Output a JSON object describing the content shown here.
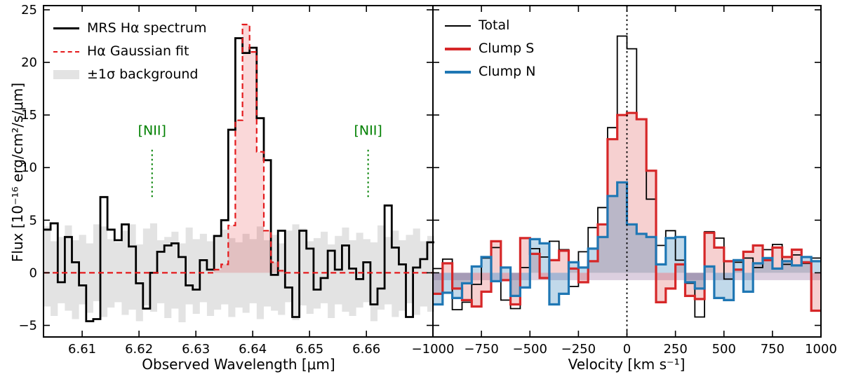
{
  "figure": {
    "background": "#ffffff",
    "axis_color": "#000000"
  },
  "chart_data": [
    {
      "type": "bar",
      "subtype": "step-histogram-spectrum",
      "panel": "left",
      "xlabel": "Observed Wavelength [μm]",
      "ylabel": "Flux [10⁻¹⁶ erg/cm²/s/μm]",
      "xlim": [
        6.6032,
        6.6717
      ],
      "ylim": [
        -6.1,
        25.4
      ],
      "xticks": {
        "values": [
          6.61,
          6.62,
          6.63,
          6.64,
          6.65,
          6.66
        ],
        "labels": [
          "6.61",
          "6.62",
          "6.63",
          "6.64",
          "6.65",
          "6.66"
        ]
      },
      "yticks": {
        "values": [
          -5,
          0,
          5,
          10,
          15,
          20,
          25
        ],
        "labels": [
          "−5",
          "0",
          "5",
          "10",
          "15",
          "20",
          "25"
        ]
      },
      "bins": {
        "start": 6.6032,
        "width": 0.00125,
        "count": 55
      },
      "series": [
        {
          "name": "MRS Hα spectrum",
          "role": "spectrum",
          "color": "#000000",
          "line_style": "solid",
          "line_width": 2.8,
          "values": [
            4.1,
            4.7,
            -0.9,
            3.4,
            1.0,
            -1.2,
            -4.6,
            -4.4,
            7.2,
            4.1,
            3.1,
            4.6,
            2.5,
            -1.0,
            -3.4,
            0.0,
            2.0,
            2.6,
            2.8,
            1.5,
            -1.2,
            -1.6,
            1.2,
            0.3,
            3.5,
            5.0,
            13.6,
            22.3,
            20.9,
            21.4,
            14.7,
            10.7,
            -0.2,
            4.0,
            -1.4,
            -4.2,
            4.0,
            2.3,
            -1.6,
            -0.5,
            2.1,
            0.3,
            2.6,
            0.4,
            -0.6,
            1.0,
            -3.0,
            -1.5,
            6.4,
            2.4,
            0.8,
            -4.2,
            0.5,
            1.3,
            2.9
          ]
        },
        {
          "name": "Hα Gaussian fit",
          "role": "fit",
          "color": "#e41a1c",
          "line_style": "dashed",
          "line_width": 2.2,
          "fill_color": "rgba(228,26,28,0.17)",
          "values": [
            0,
            0,
            0,
            0,
            0,
            0,
            0,
            0,
            0,
            0,
            0,
            0,
            0,
            0,
            0,
            0,
            0,
            0,
            0,
            0,
            0,
            0,
            0,
            0,
            0.3,
            0.8,
            4.5,
            14.5,
            23.6,
            21.0,
            11.5,
            4.0,
            1.0,
            0.2,
            0,
            0,
            0,
            0,
            0,
            0,
            0,
            0,
            0,
            0,
            0,
            0,
            0,
            0,
            0,
            0,
            0,
            0,
            0,
            0,
            0
          ]
        }
      ],
      "background_band": {
        "name": "±1σ background",
        "color": "#e3e3e3",
        "upper": [
          4.4,
          3.0,
          3.4,
          4.5,
          3.1,
          3.6,
          2.8,
          4.6,
          4.4,
          3.2,
          2.9,
          4.0,
          4.6,
          2.7,
          4.2,
          4.7,
          3.1,
          3.4,
          3.9,
          2.8,
          4.3,
          3.2,
          3.7,
          3.0,
          3.5,
          4.1,
          3.3,
          2.9,
          3.7,
          3.2,
          4.4,
          3.1,
          3.6,
          2.8,
          4.0,
          4.6,
          4.2,
          3.0,
          3.3,
          3.9,
          2.7,
          3.5,
          4.3,
          3.1,
          3.8,
          3.2,
          2.9,
          4.5,
          3.4,
          4.0,
          3.1,
          3.6,
          4.2,
          3.0,
          3.5
        ],
        "lower": [
          -3.2,
          -4.1,
          -2.9,
          -3.6,
          -4.4,
          -3.0,
          -3.8,
          -2.7,
          -4.2,
          -3.3,
          -2.8,
          -4.0,
          -3.5,
          -4.6,
          -3.1,
          -3.7,
          -2.9,
          -4.3,
          -3.4,
          -4.7,
          -3.0,
          -3.9,
          -2.8,
          -4.1,
          -3.5,
          -3.0,
          -4.2,
          -3.3,
          -3.8,
          -2.9,
          -4.4,
          -3.2,
          -3.6,
          -4.0,
          -2.8,
          -4.5,
          -3.1,
          -3.9,
          -3.4,
          -2.9,
          -4.3,
          -3.0,
          -3.7,
          -4.1,
          -3.3,
          -2.8,
          -4.6,
          -3.5,
          -3.0,
          -4.2,
          -3.6,
          -2.9,
          -4.0,
          -3.2,
          -3.7
        ]
      },
      "annotations": [
        {
          "type": "vline-segment",
          "label": "[NII]",
          "x": 6.6223,
          "y1": 7.05,
          "y2": 11.7,
          "label_y": 13.1,
          "color": "#008000",
          "style": "dotted"
        },
        {
          "type": "vline-segment",
          "label": "[NII]",
          "x": 6.6603,
          "y1": 7.05,
          "y2": 11.7,
          "label_y": 13.1,
          "color": "#008000",
          "style": "dotted"
        }
      ],
      "legend": [
        {
          "label": "MRS Hα spectrum",
          "color": "#000000",
          "style": "solid-thick"
        },
        {
          "label": "Hα Gaussian fit",
          "color": "#e41a1c",
          "style": "dashed"
        },
        {
          "label": "±1σ background",
          "color": "#e3e3e3",
          "style": "patch"
        }
      ]
    },
    {
      "type": "bar",
      "subtype": "step-histogram-velocity",
      "panel": "right",
      "xlabel": "Velocity [km s⁻¹]",
      "ylabel": "",
      "xlim": [
        -1000,
        1000
      ],
      "ylim": [
        -6.1,
        25.4
      ],
      "xticks": {
        "values": [
          -1000,
          -750,
          -500,
          -250,
          0,
          250,
          500,
          750,
          1000
        ],
        "labels": [
          "−1000",
          "−750",
          "−500",
          "−250",
          "0",
          "250",
          "500",
          "750",
          "1000"
        ]
      },
      "yticks": {
        "values": [
          -5,
          0,
          5,
          10,
          15,
          20,
          25
        ],
        "labels": []
      },
      "bins": {
        "start": -1000,
        "width": 50,
        "count": 40
      },
      "series": [
        {
          "name": "Total",
          "role": "total",
          "color": "#000000",
          "line_style": "solid",
          "line_width": 1.8,
          "values": [
            0.4,
            1.3,
            -3.5,
            -2.8,
            -1.1,
            1.4,
            2.4,
            -2.6,
            -3.4,
            0.5,
            2.3,
            1.5,
            3.0,
            2.2,
            -1.3,
            2.0,
            4.3,
            6.2,
            13.8,
            22.5,
            21.3,
            14.6,
            7.0,
            2.6,
            4.0,
            1.2,
            -1.0,
            -4.2,
            3.9,
            3.3,
            -0.6,
            1.0,
            1.4,
            0.5,
            2.2,
            2.7,
            0.8,
            1.7,
            0.9,
            1.4
          ]
        },
        {
          "name": "Clump S",
          "role": "clump-s",
          "color": "#d62728",
          "line_style": "solid",
          "line_width": 3.2,
          "fill_color": "rgba(214,39,40,0.22)",
          "values": [
            -2.0,
            0.9,
            -1.5,
            -2.6,
            -3.2,
            -1.8,
            3.0,
            -0.7,
            -3.0,
            3.3,
            1.8,
            -0.5,
            1.2,
            2.1,
            0.4,
            -0.9,
            1.1,
            4.6,
            12.7,
            15.0,
            15.2,
            14.6,
            9.7,
            -2.8,
            -1.5,
            0.8,
            -2.2,
            -2.5,
            3.8,
            2.4,
            1.1,
            0.3,
            2.0,
            2.6,
            1.2,
            2.4,
            1.5,
            2.2,
            1.0,
            -3.6
          ]
        },
        {
          "name": "Clump N",
          "role": "clump-n",
          "color": "#1f77b4",
          "line_style": "solid",
          "line_width": 3.2,
          "fill_color": "rgba(31,119,180,0.28)",
          "values": [
            -3.0,
            -1.9,
            -2.4,
            -1.0,
            0.6,
            1.5,
            -0.8,
            0.5,
            -2.2,
            -1.4,
            3.2,
            2.8,
            -3.0,
            -2.0,
            1.0,
            0.5,
            2.3,
            3.4,
            7.3,
            8.6,
            4.6,
            3.7,
            3.4,
            0.8,
            3.3,
            3.4,
            -0.9,
            -1.5,
            0.6,
            -2.4,
            -2.6,
            1.2,
            -1.8,
            0.9,
            1.4,
            0.4,
            1.1,
            0.7,
            1.5,
            1.1
          ]
        }
      ],
      "overlap_band": {
        "y_top": 0,
        "y_bottom": -0.7,
        "color": "rgba(140,95,150,0.30)"
      },
      "annotations": [
        {
          "type": "vline-full",
          "label": "",
          "x": 0,
          "color": "#000000",
          "style": "dotted"
        }
      ],
      "legend": [
        {
          "label": "Total",
          "color": "#000000",
          "style": "solid-thin"
        },
        {
          "label": "Clump S",
          "color": "#d62728",
          "style": "solid-thick"
        },
        {
          "label": "Clump N",
          "color": "#1f77b4",
          "style": "solid-thick"
        }
      ]
    }
  ]
}
